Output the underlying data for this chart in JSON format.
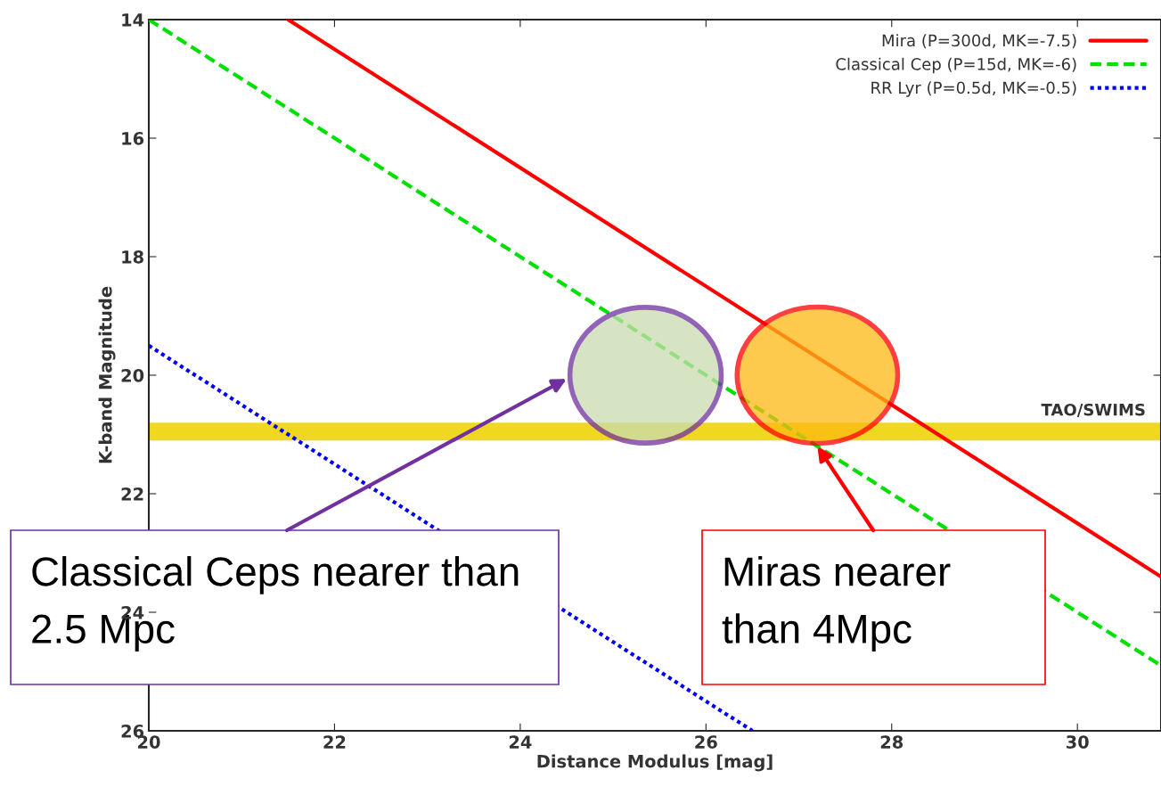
{
  "chart_data": {
    "type": "line",
    "xlabel": "Distance Modulus [mag]",
    "ylabel": "K-band Magnitude",
    "xlim": [
      20,
      30.9
    ],
    "xticks": [
      20,
      22,
      24,
      26,
      28,
      30
    ],
    "ylim": [
      26,
      14
    ],
    "yticks": [
      14,
      16,
      18,
      20,
      22,
      24,
      26
    ],
    "grid": false,
    "legend": "top right",
    "marker": "none",
    "series": [
      {
        "name": "Mira (P=300d, MK=-7.5)",
        "color": "#ff0000",
        "line_style": "solid",
        "x": [
          21.5,
          30.9
        ],
        "values": [
          14,
          23.4
        ]
      },
      {
        "name": "Classical Cep (P=15d, MK=-6)",
        "color": "#00e000",
        "line_style": "dashed",
        "x": [
          20,
          30.9
        ],
        "values": [
          14,
          24.9
        ]
      },
      {
        "name": "RR Lyr (P=0.5d, MK=-0.5)",
        "color": "#0000ff",
        "line_style": "dotted",
        "x": [
          20,
          26.5
        ],
        "values": [
          19.5,
          26
        ]
      }
    ],
    "bands": [
      {
        "axis": "y",
        "from": 20.8,
        "to": 21.1,
        "label": "TAO/SWIMS",
        "color": "#f0d820"
      }
    ],
    "annotations": [
      "Classical Ceps nearer than 2.5 Mpc",
      {
        "text": "Miras nearer than 4Mpc",
        "x": 27.2,
        "y": 21.2
      }
    ]
  }
}
